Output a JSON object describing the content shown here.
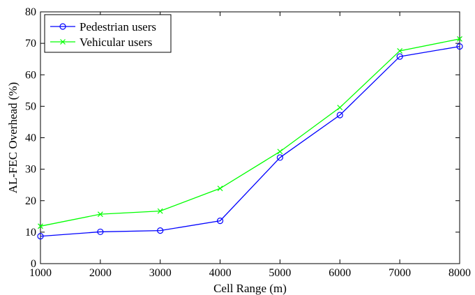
{
  "chart_data": {
    "type": "line",
    "title": "",
    "xlabel": "Cell Range (m)",
    "ylabel": "AL-FEC Overhead (%)",
    "xlim": [
      1000,
      8000
    ],
    "ylim": [
      0,
      80
    ],
    "x_ticks": [
      1000,
      2000,
      3000,
      4000,
      5000,
      6000,
      7000,
      8000
    ],
    "y_ticks": [
      0,
      10,
      20,
      30,
      40,
      50,
      60,
      70,
      80
    ],
    "grid": false,
    "legend_position": "top-left",
    "x": [
      1000,
      2000,
      3000,
      4000,
      5000,
      6000,
      7000,
      8000
    ],
    "series": [
      {
        "name": "Pedestrian users",
        "values": [
          8.7,
          10.1,
          10.5,
          13.6,
          33.7,
          47.2,
          65.8,
          69.0
        ],
        "color": "#0000ff",
        "marker": "circle"
      },
      {
        "name": "Vehicular users",
        "values": [
          11.9,
          15.7,
          16.7,
          23.9,
          35.6,
          49.6,
          67.6,
          71.4
        ],
        "color": "#00ff00",
        "marker": "x"
      }
    ]
  }
}
